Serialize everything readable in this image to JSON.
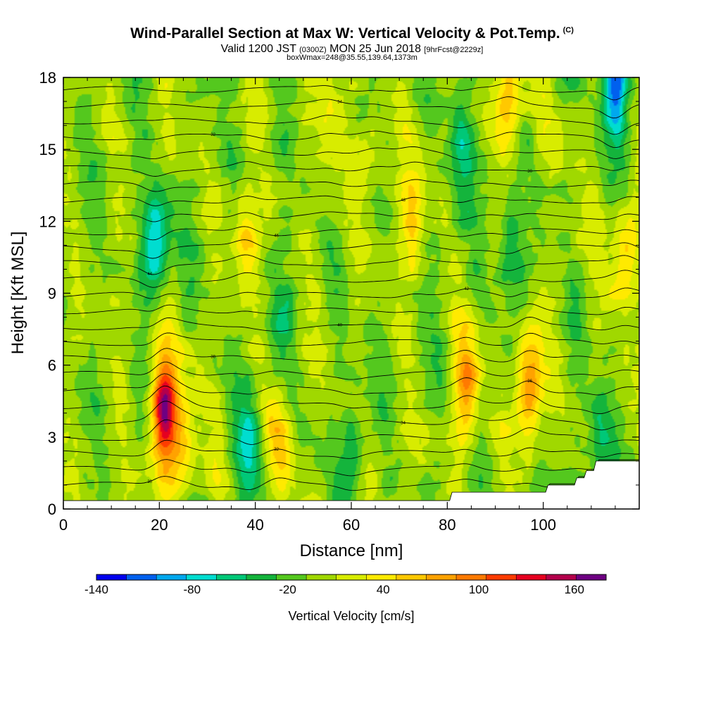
{
  "header": {
    "title": "Wind-Parallel Section at Max W: Vertical Velocity & Pot.Temp.",
    "title_mark": "(C)",
    "valid_prefix": "Valid 1200 JST",
    "valid_zulu": "(0300Z)",
    "valid_date": "MON 25 Jun 2018",
    "forecast": "[9hrFcst@2229z]",
    "box_info": "boxWmax=248@35.55,139.64,1373m"
  },
  "colorbar": {
    "title": "Vertical Velocity [cm/s]",
    "labels": [
      "-140",
      "-80",
      "-20",
      "40",
      "100",
      "160"
    ],
    "colors": [
      "#0000ee",
      "#0060ee",
      "#00a8ee",
      "#00ddd0",
      "#00c878",
      "#14b43c",
      "#54c81e",
      "#a0d800",
      "#d8ec00",
      "#ffea00",
      "#ffc800",
      "#ffa200",
      "#ff7a00",
      "#ff3c00",
      "#e60020",
      "#b4004c",
      "#6e0082"
    ],
    "value_range": [
      -140,
      180
    ],
    "bin_width": 20
  },
  "chart_data": {
    "type": "heatmap",
    "title": "Wind-Parallel Section at Max W: Vertical Velocity & Pot.Temp.",
    "xlabel": "Distance [nm]",
    "ylabel": "Height [Kft MSL]",
    "xlim": [
      0,
      120
    ],
    "ylim": [
      0,
      18
    ],
    "x_ticks": [
      0,
      20,
      40,
      60,
      80,
      100
    ],
    "y_ticks": [
      0,
      3,
      6,
      9,
      12,
      15,
      18
    ],
    "plotted_variable": "Vertical Velocity [cm/s]",
    "overlay": "Pot.Temp. isolines",
    "max_w": 248,
    "updrafts": [
      {
        "x": 21,
        "y": 4.2,
        "w": 170
      },
      {
        "x": 25,
        "y": 3.0,
        "w": 60
      },
      {
        "x": 45,
        "y": 2.7,
        "w": 55
      },
      {
        "x": 84,
        "y": 5.3,
        "w": 95
      },
      {
        "x": 97,
        "y": 5.1,
        "w": 105
      },
      {
        "x": 93,
        "y": 17.0,
        "w": 65
      },
      {
        "x": 38,
        "y": 11.5,
        "w": 65
      },
      {
        "x": 73,
        "y": 12.0,
        "w": 55
      },
      {
        "x": 117,
        "y": 10.2,
        "w": 65
      },
      {
        "x": 55,
        "y": 16.0,
        "w": 35
      },
      {
        "x": 65,
        "y": 15.0,
        "w": 30
      }
    ],
    "downdrafts": [
      {
        "x": 19,
        "y": 11.0,
        "w": -95
      },
      {
        "x": 39,
        "y": 2.6,
        "w": -65
      },
      {
        "x": 83,
        "y": 15.0,
        "w": -55
      },
      {
        "x": 112,
        "y": 2.8,
        "w": -60
      },
      {
        "x": 115,
        "y": 17.5,
        "w": -120
      },
      {
        "x": 93,
        "y": 11.0,
        "w": -50
      },
      {
        "x": 45,
        "y": 7.5,
        "w": -30
      },
      {
        "x": 60,
        "y": 2.7,
        "w": -40
      }
    ]
  }
}
